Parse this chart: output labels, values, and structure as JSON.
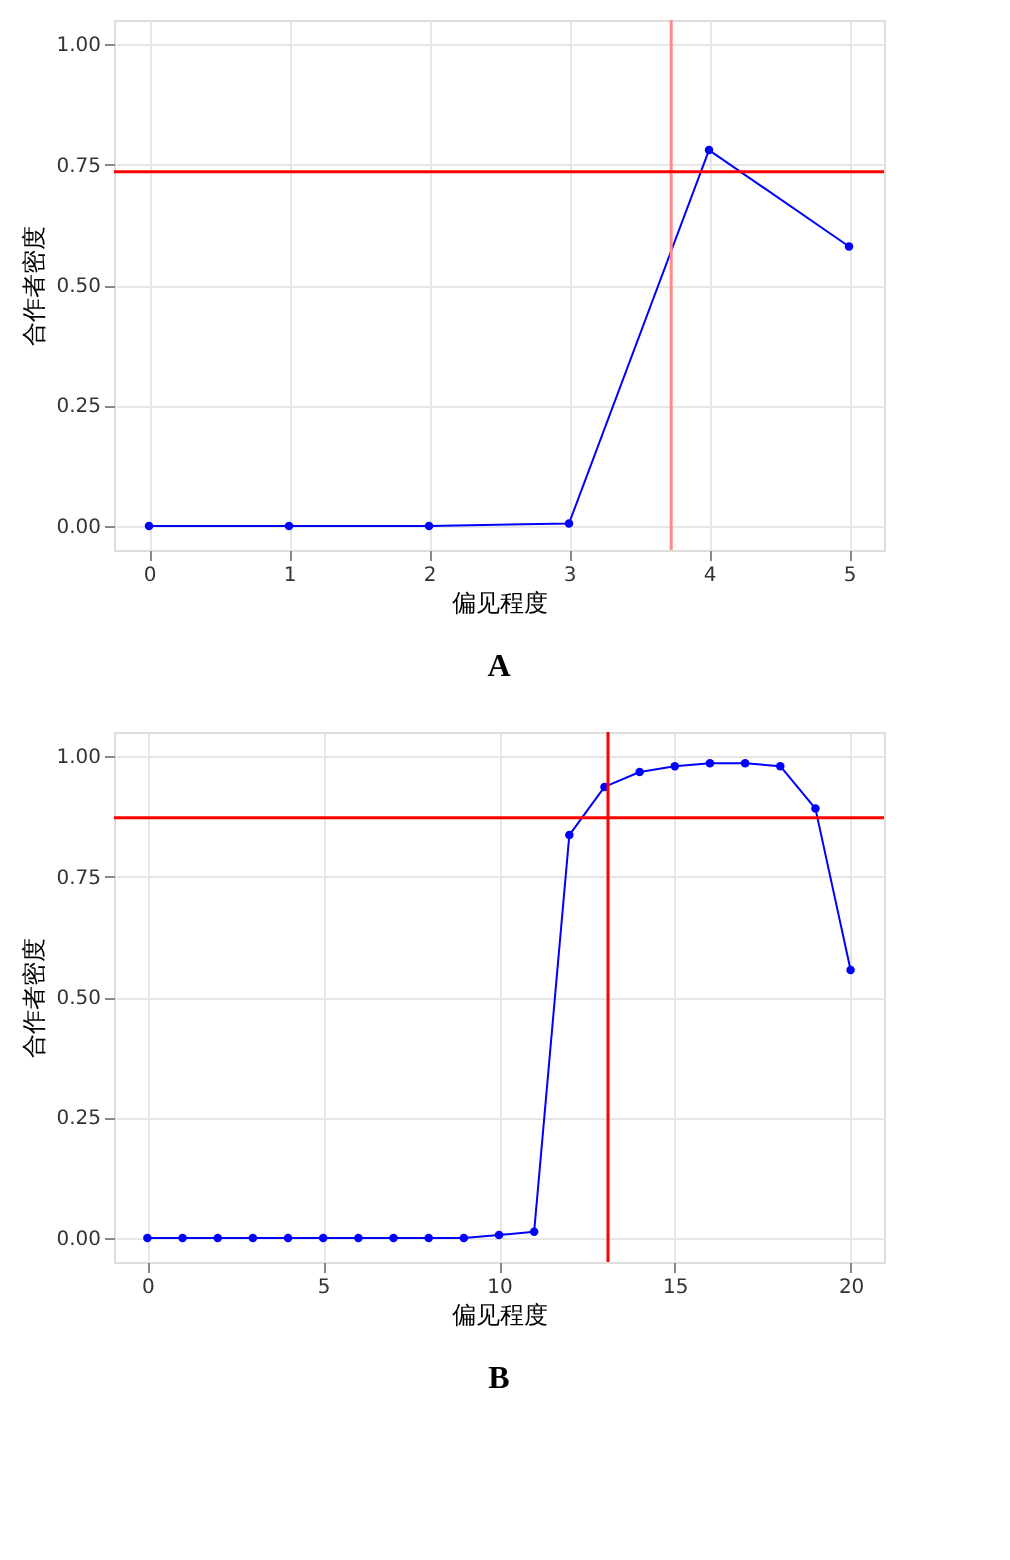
{
  "chart_data": [
    {
      "type": "line",
      "title": "A",
      "xlabel": "偏见程度",
      "ylabel": "合作者密度",
      "x": [
        0,
        1,
        2,
        3,
        4,
        5
      ],
      "series": [
        {
          "color": "#0000ff",
          "values": [
            0,
            0,
            0,
            0.005,
            0.78,
            0.58
          ]
        }
      ],
      "xlim": [
        -0.25,
        5.25
      ],
      "xticks": [
        0,
        1,
        2,
        3,
        4,
        5
      ],
      "ylim": [
        -0.05,
        1.05
      ],
      "yticks": [
        {
          "value": 0,
          "label": "0.00"
        },
        {
          "value": 0.25,
          "label": "0.25"
        },
        {
          "value": 0.5,
          "label": "0.50"
        },
        {
          "value": 0.75,
          "label": "0.75"
        },
        {
          "value": 1,
          "label": "1.00"
        }
      ],
      "ref_lines": [
        {
          "axis": "x",
          "value": 3.73,
          "color": "#ff8a8a"
        },
        {
          "axis": "y",
          "value": 0.735,
          "color": "#ff0000"
        }
      ],
      "grid": true,
      "marker": "circle",
      "line_style": "solid"
    },
    {
      "type": "line",
      "title": "B",
      "xlabel": "偏见程度",
      "ylabel": "合作者密度",
      "x": [
        0,
        1,
        2,
        3,
        4,
        5,
        6,
        7,
        8,
        9,
        10,
        11,
        12,
        13,
        14,
        15,
        16,
        17,
        18,
        19,
        20
      ],
      "series": [
        {
          "color": "#0000ff",
          "values": [
            0,
            0,
            0,
            0,
            0,
            0,
            0,
            0,
            0,
            0,
            0.006,
            0.013,
            0.836,
            0.936,
            0.967,
            0.979,
            0.985,
            0.985,
            0.979,
            0.891,
            0.556
          ]
        }
      ],
      "xlim": [
        -0.95,
        20.95
      ],
      "xticks": [
        0,
        5,
        10,
        15,
        20
      ],
      "ylim": [
        -0.05,
        1.05
      ],
      "yticks": [
        {
          "value": 0,
          "label": "0.00"
        },
        {
          "value": 0.25,
          "label": "0.25"
        },
        {
          "value": 0.5,
          "label": "0.50"
        },
        {
          "value": 0.75,
          "label": "0.75"
        },
        {
          "value": 1,
          "label": "1.00"
        }
      ],
      "ref_lines": [
        {
          "axis": "x",
          "value": 13.1,
          "color": "#ff0000"
        },
        {
          "axis": "y",
          "value": 0.872,
          "color": "#ff0000"
        }
      ],
      "grid": true,
      "marker": "circle",
      "line_style": "solid"
    }
  ]
}
